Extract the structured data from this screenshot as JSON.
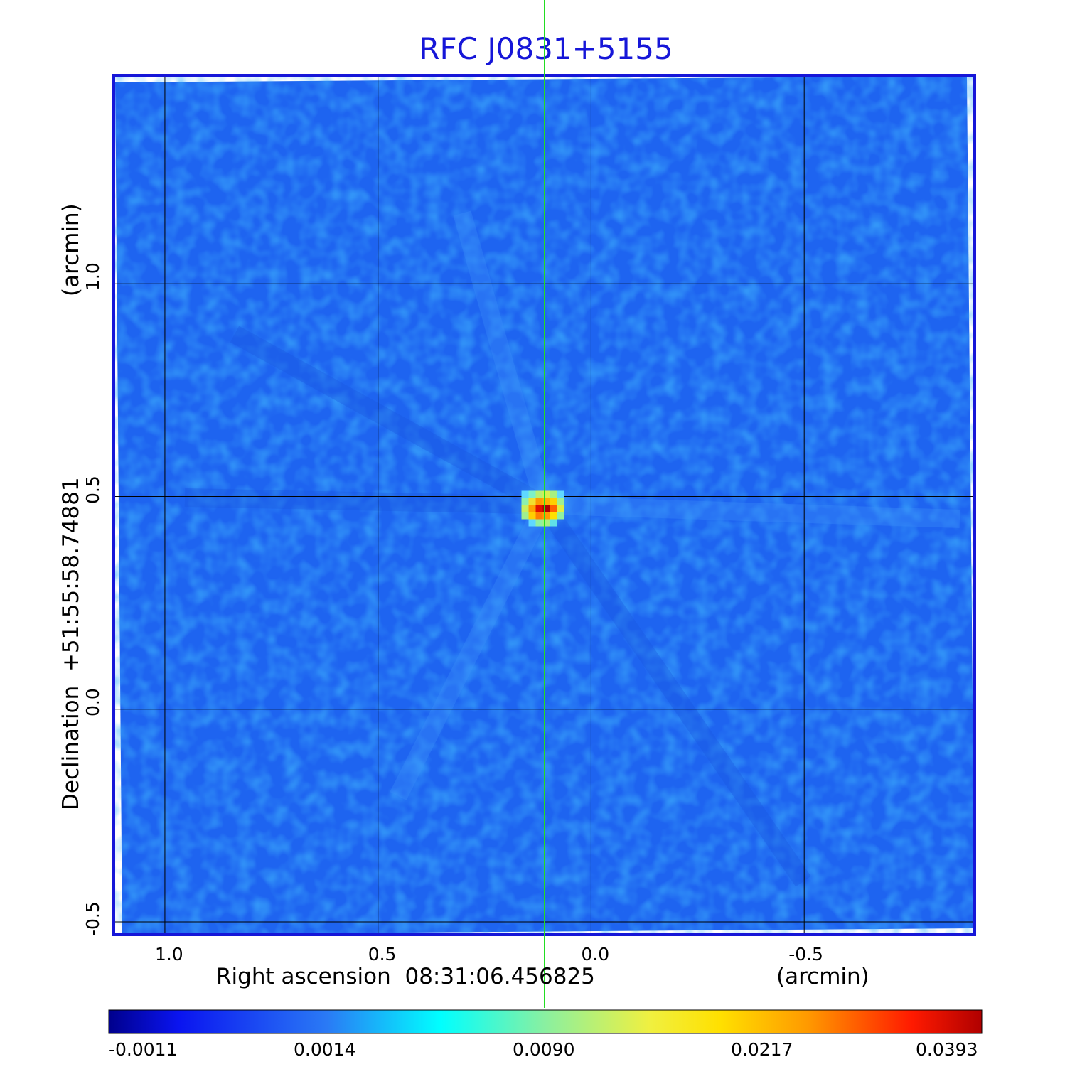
{
  "chart_data": {
    "type": "heatmap",
    "title": "RFC J0831+5155",
    "xlabel": "Right ascension  08:31:06.456825",
    "xunit": "(arcmin)",
    "ylabel": "Declination  +51:55:58.74881",
    "yunit": "(arcmin)",
    "x_ticks": [
      "1.0",
      "0.5",
      "0.0",
      "-0.5"
    ],
    "x_tick_values": [
      1.0,
      0.5,
      0.0,
      -0.5
    ],
    "y_ticks": [
      "1.0",
      "0.5",
      "0.0",
      "-0.5"
    ],
    "y_tick_values": [
      1.0,
      0.5,
      0.0,
      -0.5
    ],
    "xlim": [
      1.12,
      -0.9
    ],
    "ylim": [
      -0.53,
      1.49
    ],
    "grid": true,
    "peak": {
      "x": 0.11,
      "y": 0.48,
      "value": 0.0393
    },
    "crosshair": {
      "x": 0.11,
      "y": 0.48
    },
    "colorbar": {
      "ticks": [
        "-0.0011",
        "0.0014",
        "0.0090",
        "0.0217",
        "0.0393"
      ],
      "colormap": "jet"
    },
    "colors": {
      "background_field": "#1e64f0",
      "frame": "#1616d8",
      "crosshair": "#22dd22",
      "grid": "#000000"
    }
  }
}
